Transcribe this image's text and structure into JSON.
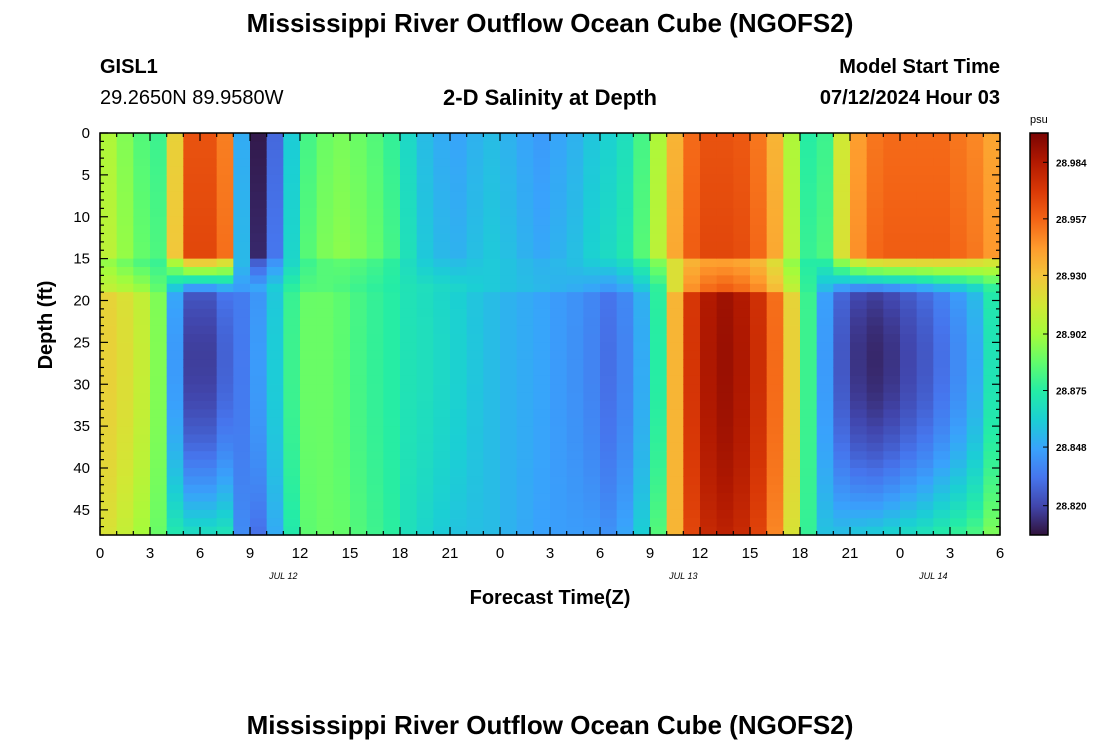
{
  "title": "Mississippi River Outflow Ocean Cube (NGOFS2)",
  "title_repeat": "Mississippi River Outflow Ocean Cube (NGOFS2)",
  "station": {
    "name": "GISL1",
    "coords": "29.2650N  89.9580W"
  },
  "model": {
    "label": "Model Start Time",
    "start": "07/12/2024 Hour 03"
  },
  "chart_data": {
    "type": "heatmap",
    "title": "2-D Salinity at Depth",
    "xlabel": "Forecast Time(Z)",
    "ylabel": "Depth (ft)",
    "x_tick_labels": [
      "0",
      "3",
      "6",
      "9",
      "12",
      "15",
      "18",
      "21",
      "0",
      "3",
      "6",
      "9",
      "12",
      "15",
      "18",
      "21",
      "0",
      "3",
      "6"
    ],
    "date_labels": [
      {
        "label": "JUL 12",
        "hour": 11
      },
      {
        "label": "JUL 13",
        "hour": 35
      },
      {
        "label": "JUL 14",
        "hour": 50
      }
    ],
    "y_ticks": [
      0,
      5,
      10,
      15,
      20,
      25,
      30,
      35,
      40,
      45
    ],
    "xlim_hours": [
      0,
      54
    ],
    "ylim_ft": [
      0,
      48
    ],
    "colorbar": {
      "unit": "psu",
      "min": 28.806,
      "max": 28.998,
      "tick_labels": [
        "28.984",
        "28.957",
        "28.930",
        "28.902",
        "28.875",
        "28.848",
        "28.820"
      ],
      "colors": [
        "#30123b",
        "#4145ab",
        "#4675ed",
        "#39a2fc",
        "#1bcfd4",
        "#24eca6",
        "#61fc6c",
        "#a4fc3b",
        "#d1e834",
        "#f3c63a",
        "#fe9b2d",
        "#f36315",
        "#d93806",
        "#b11901",
        "#7a0403"
      ]
    },
    "values_note": "salinity (psu); shallow layer 0-15 ft and deep layer 18-48 ft",
    "columns": [
      {
        "hour": 0,
        "shallow": 28.905,
        "deep": 28.925
      },
      {
        "hour": 1,
        "shallow": 28.895,
        "deep": 28.92
      },
      {
        "hour": 2,
        "shallow": 28.885,
        "deep": 28.912
      },
      {
        "hour": 3,
        "shallow": 28.88,
        "deep": 28.895
      },
      {
        "hour": 4,
        "shallow": 28.925,
        "deep": 28.845
      },
      {
        "hour": 5,
        "shallow": 28.962,
        "deep": 28.818
      },
      {
        "hour": 6,
        "shallow": 28.962,
        "deep": 28.818
      },
      {
        "hour": 7,
        "shallow": 28.95,
        "deep": 28.828
      },
      {
        "hour": 8,
        "shallow": 28.85,
        "deep": 28.835
      },
      {
        "hour": 9,
        "shallow": 28.808,
        "deep": 28.845
      },
      {
        "hour": 10,
        "shallow": 28.83,
        "deep": 28.86
      },
      {
        "hour": 11,
        "shallow": 28.86,
        "deep": 28.88
      },
      {
        "hour": 12,
        "shallow": 28.882,
        "deep": 28.89
      },
      {
        "hour": 13,
        "shallow": 28.89,
        "deep": 28.89
      },
      {
        "hour": 14,
        "shallow": 28.893,
        "deep": 28.887
      },
      {
        "hour": 15,
        "shallow": 28.89,
        "deep": 28.882
      },
      {
        "hour": 16,
        "shallow": 28.885,
        "deep": 28.878
      },
      {
        "hour": 17,
        "shallow": 28.878,
        "deep": 28.875
      },
      {
        "hour": 18,
        "shallow": 28.865,
        "deep": 28.87
      },
      {
        "hour": 19,
        "shallow": 28.855,
        "deep": 28.868
      },
      {
        "hour": 20,
        "shallow": 28.85,
        "deep": 28.865
      },
      {
        "hour": 21,
        "shallow": 28.848,
        "deep": 28.862
      },
      {
        "hour": 22,
        "shallow": 28.852,
        "deep": 28.858
      },
      {
        "hour": 23,
        "shallow": 28.855,
        "deep": 28.855
      },
      {
        "hour": 24,
        "shallow": 28.852,
        "deep": 28.852
      },
      {
        "hour": 25,
        "shallow": 28.848,
        "deep": 28.85
      },
      {
        "hour": 26,
        "shallow": 28.845,
        "deep": 28.848
      },
      {
        "hour": 27,
        "shallow": 28.848,
        "deep": 28.845
      },
      {
        "hour": 28,
        "shallow": 28.852,
        "deep": 28.842
      },
      {
        "hour": 29,
        "shallow": 28.858,
        "deep": 28.838
      },
      {
        "hour": 30,
        "shallow": 28.862,
        "deep": 28.832
      },
      {
        "hour": 31,
        "shallow": 28.868,
        "deep": 28.838
      },
      {
        "hour": 32,
        "shallow": 28.882,
        "deep": 28.85
      },
      {
        "hour": 33,
        "shallow": 28.905,
        "deep": 28.875
      },
      {
        "hour": 34,
        "shallow": 28.935,
        "deep": 28.935
      },
      {
        "hour": 35,
        "shallow": 28.955,
        "deep": 28.972
      },
      {
        "hour": 36,
        "shallow": 28.962,
        "deep": 28.985
      },
      {
        "hour": 37,
        "shallow": 28.962,
        "deep": 28.99
      },
      {
        "hour": 38,
        "shallow": 28.96,
        "deep": 28.985
      },
      {
        "hour": 39,
        "shallow": 28.952,
        "deep": 28.975
      },
      {
        "hour": 40,
        "shallow": 28.935,
        "deep": 28.955
      },
      {
        "hour": 41,
        "shallow": 28.905,
        "deep": 28.925
      },
      {
        "hour": 42,
        "shallow": 28.875,
        "deep": 28.88
      },
      {
        "hour": 43,
        "shallow": 28.88,
        "deep": 28.845
      },
      {
        "hour": 44,
        "shallow": 28.915,
        "deep": 28.825
      },
      {
        "hour": 45,
        "shallow": 28.942,
        "deep": 28.815
      },
      {
        "hour": 46,
        "shallow": 28.952,
        "deep": 28.812
      },
      {
        "hour": 47,
        "shallow": 28.955,
        "deep": 28.815
      },
      {
        "hour": 48,
        "shallow": 28.955,
        "deep": 28.82
      },
      {
        "hour": 49,
        "shallow": 28.955,
        "deep": 28.825
      },
      {
        "hour": 50,
        "shallow": 28.955,
        "deep": 28.832
      },
      {
        "hour": 51,
        "shallow": 28.952,
        "deep": 28.84
      },
      {
        "hour": 52,
        "shallow": 28.948,
        "deep": 28.85
      },
      {
        "hour": 53,
        "shallow": 28.94,
        "deep": 28.87
      }
    ]
  }
}
